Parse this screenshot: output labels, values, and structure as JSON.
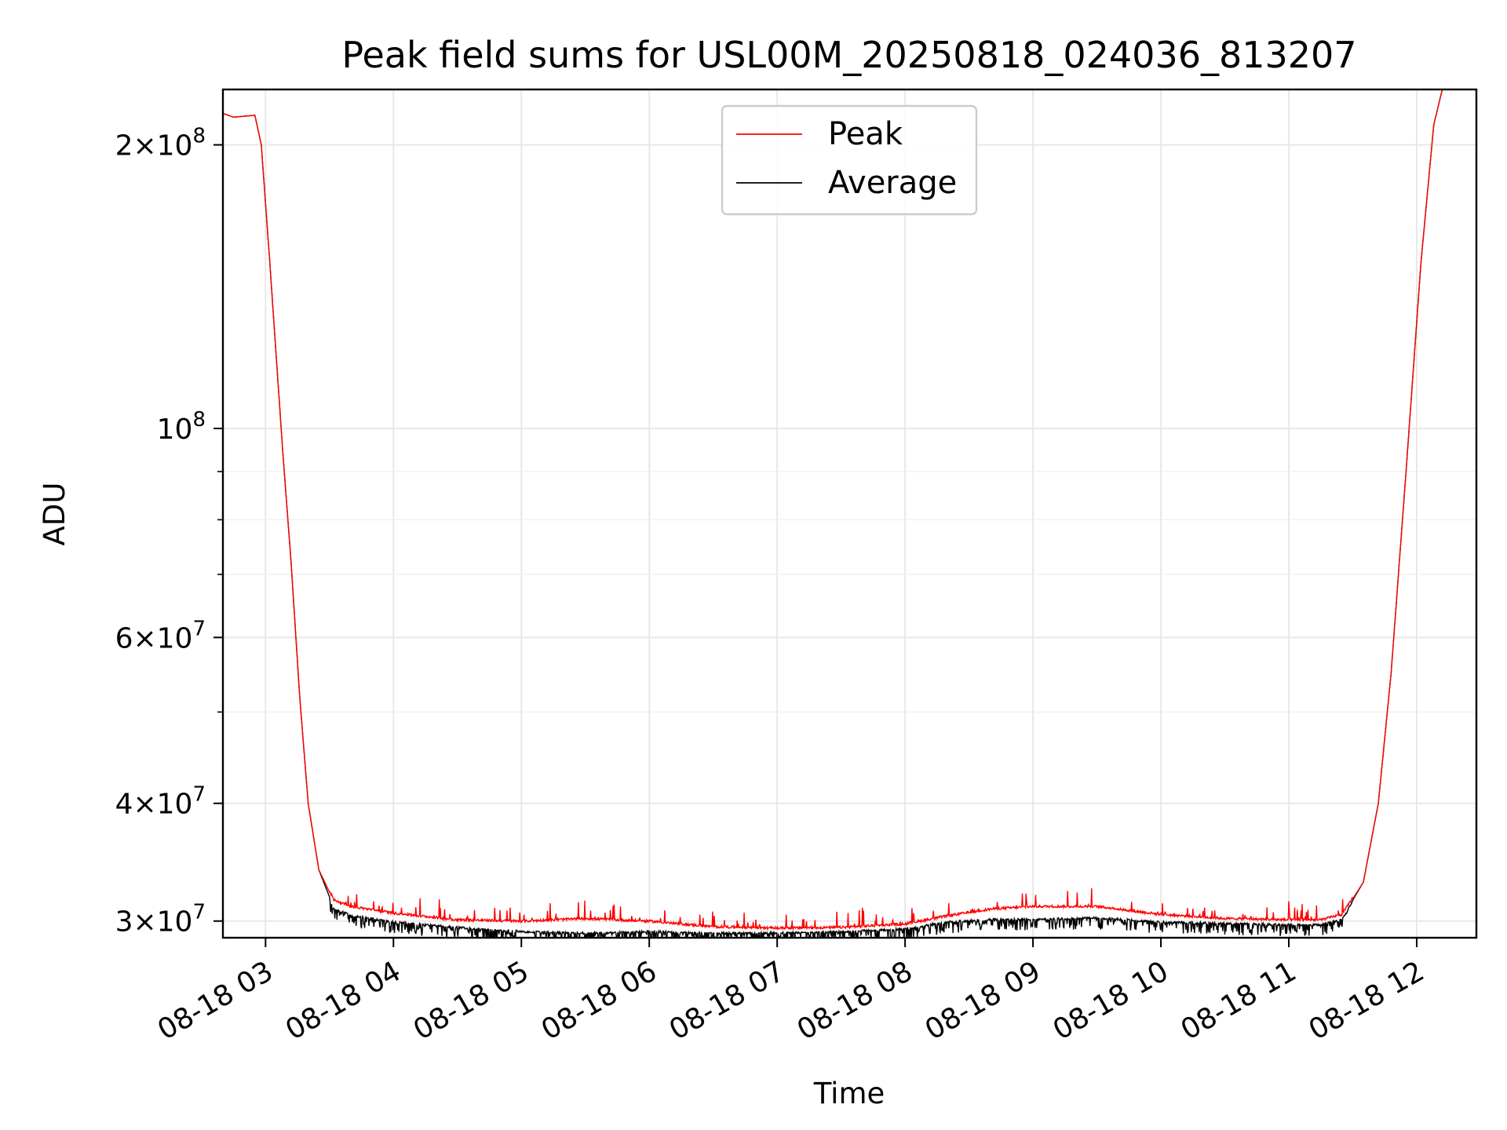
{
  "chart_data": {
    "type": "line",
    "title": "Peak field sums for USL00M_20250818_024036_813207",
    "xlabel": "Time",
    "ylabel": "ADU",
    "y_scale": "log",
    "ylim": [
      28800000,
      229000000
    ],
    "xlim": [
      "2025-08-18 02:40",
      "2025-08-18 12:28"
    ],
    "grid": true,
    "legend_position": "top-center",
    "x_ticks": [
      {
        "t": "2025-08-18 03:00",
        "label": "08-18 03"
      },
      {
        "t": "2025-08-18 04:00",
        "label": "08-18 04"
      },
      {
        "t": "2025-08-18 05:00",
        "label": "08-18 05"
      },
      {
        "t": "2025-08-18 06:00",
        "label": "08-18 06"
      },
      {
        "t": "2025-08-18 07:00",
        "label": "08-18 07"
      },
      {
        "t": "2025-08-18 08:00",
        "label": "08-18 08"
      },
      {
        "t": "2025-08-18 09:00",
        "label": "08-18 09"
      },
      {
        "t": "2025-08-18 10:00",
        "label": "08-18 10"
      },
      {
        "t": "2025-08-18 11:00",
        "label": "08-18 11"
      },
      {
        "t": "2025-08-18 12:00",
        "label": "08-18 12"
      }
    ],
    "y_major_ticks": [
      {
        "value": 30000000,
        "mant": "3",
        "exp": "7"
      },
      {
        "value": 40000000,
        "mant": "4",
        "exp": "7"
      },
      {
        "value": 60000000,
        "mant": "6",
        "exp": "7"
      },
      {
        "value": 100000000,
        "mant": "",
        "exp": "8"
      },
      {
        "value": 200000000,
        "mant": "2",
        "exp": "8"
      }
    ],
    "y_minor_ticks": [
      50000000,
      70000000,
      80000000,
      90000000
    ],
    "series": [
      {
        "name": "Peak",
        "color": "#ff0000",
        "noise": "up",
        "points": [
          [
            "2025-08-18 02:40",
            216000000
          ],
          [
            "2025-08-18 02:45",
            214000000
          ],
          [
            "2025-08-18 02:55",
            215000000
          ],
          [
            "2025-08-18 02:58",
            200000000
          ],
          [
            "2025-08-18 03:02",
            150000000
          ],
          [
            "2025-08-18 03:08",
            95000000
          ],
          [
            "2025-08-18 03:12",
            72000000
          ],
          [
            "2025-08-18 03:16",
            52000000
          ],
          [
            "2025-08-18 03:20",
            40000000
          ],
          [
            "2025-08-18 03:25",
            34000000
          ],
          [
            "2025-08-18 03:32",
            31500000
          ],
          [
            "2025-08-18 03:40",
            31000000
          ],
          [
            "2025-08-18 04:00",
            30500000
          ],
          [
            "2025-08-18 04:30",
            30000000
          ],
          [
            "2025-08-18 05:00",
            29900000
          ],
          [
            "2025-08-18 05:30",
            30100000
          ],
          [
            "2025-08-18 06:00",
            29900000
          ],
          [
            "2025-08-18 06:30",
            29500000
          ],
          [
            "2025-08-18 07:00",
            29400000
          ],
          [
            "2025-08-18 07:30",
            29450000
          ],
          [
            "2025-08-18 08:00",
            29700000
          ],
          [
            "2025-08-18 08:20",
            30300000
          ],
          [
            "2025-08-18 08:40",
            30800000
          ],
          [
            "2025-08-18 09:00",
            31000000
          ],
          [
            "2025-08-18 09:30",
            31000000
          ],
          [
            "2025-08-18 10:00",
            30400000
          ],
          [
            "2025-08-18 10:30",
            30100000
          ],
          [
            "2025-08-18 11:00",
            30000000
          ],
          [
            "2025-08-18 11:15",
            30000000
          ],
          [
            "2025-08-18 11:25",
            30400000
          ],
          [
            "2025-08-18 11:35",
            33000000
          ],
          [
            "2025-08-18 11:42",
            40000000
          ],
          [
            "2025-08-18 11:48",
            55000000
          ],
          [
            "2025-08-18 11:55",
            90000000
          ],
          [
            "2025-08-18 12:02",
            150000000
          ],
          [
            "2025-08-18 12:08",
            210000000
          ],
          [
            "2025-08-18 12:12",
            229000000
          ]
        ]
      },
      {
        "name": "Average",
        "color": "#000000",
        "noise": "down",
        "points": [
          [
            "2025-08-18 02:40",
            216000000
          ],
          [
            "2025-08-18 02:45",
            214000000
          ],
          [
            "2025-08-18 02:55",
            215000000
          ],
          [
            "2025-08-18 02:58",
            200000000
          ],
          [
            "2025-08-18 03:02",
            150000000
          ],
          [
            "2025-08-18 03:08",
            95000000
          ],
          [
            "2025-08-18 03:12",
            72000000
          ],
          [
            "2025-08-18 03:16",
            52000000
          ],
          [
            "2025-08-18 03:20",
            40000000
          ],
          [
            "2025-08-18 03:25",
            34000000
          ],
          [
            "2025-08-18 03:32",
            31000000
          ],
          [
            "2025-08-18 03:40",
            30500000
          ],
          [
            "2025-08-18 04:00",
            30000000
          ],
          [
            "2025-08-18 04:30",
            29600000
          ],
          [
            "2025-08-18 05:00",
            29300000
          ],
          [
            "2025-08-18 05:30",
            29200000
          ],
          [
            "2025-08-18 06:00",
            29300000
          ],
          [
            "2025-08-18 06:30",
            29200000
          ],
          [
            "2025-08-18 07:00",
            29200000
          ],
          [
            "2025-08-18 07:30",
            29300000
          ],
          [
            "2025-08-18 08:00",
            29500000
          ],
          [
            "2025-08-18 08:20",
            30000000
          ],
          [
            "2025-08-18 08:40",
            30200000
          ],
          [
            "2025-08-18 09:00",
            30200000
          ],
          [
            "2025-08-18 09:30",
            30300000
          ],
          [
            "2025-08-18 10:00",
            30000000
          ],
          [
            "2025-08-18 10:30",
            29900000
          ],
          [
            "2025-08-18 11:00",
            29800000
          ],
          [
            "2025-08-18 11:15",
            29800000
          ],
          [
            "2025-08-18 11:25",
            30200000
          ],
          [
            "2025-08-18 11:35",
            33000000
          ],
          [
            "2025-08-18 11:42",
            40000000
          ],
          [
            "2025-08-18 11:48",
            55000000
          ],
          [
            "2025-08-18 11:55",
            90000000
          ],
          [
            "2025-08-18 12:02",
            150000000
          ],
          [
            "2025-08-18 12:08",
            210000000
          ],
          [
            "2025-08-18 12:12",
            229000000
          ]
        ]
      }
    ]
  }
}
